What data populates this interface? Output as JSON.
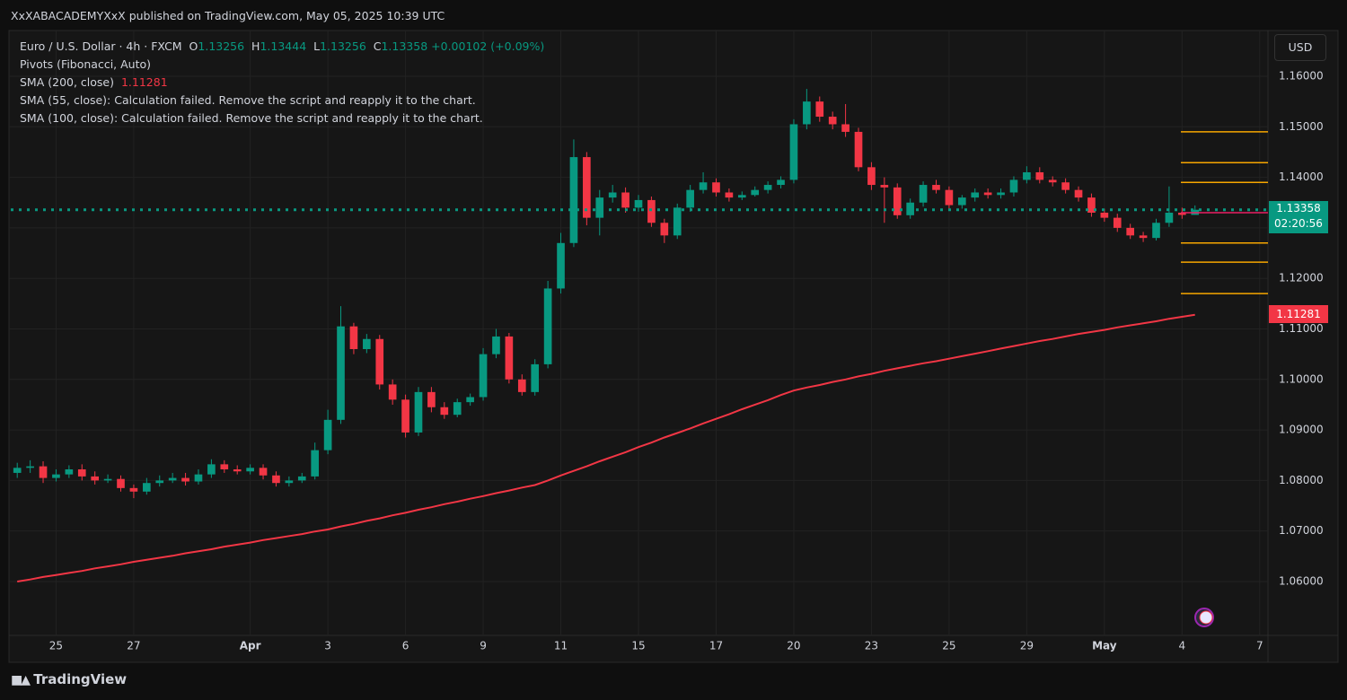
{
  "header": {
    "publisher": "XxXABACADEMYXxX published on TradingView.com, May 05, 2025 10:39 UTC"
  },
  "footer": {
    "brand": "TradingView"
  },
  "chart_data": {
    "type": "candlestick",
    "symbol": "Euro / U.S. Dollar · 4h · FXCM",
    "ohlc_labels": [
      "O",
      "H",
      "L",
      "C"
    ],
    "change": "+0.00102 (+0.09%)",
    "indicators": [
      "Pivots (Fibonacci, Auto)",
      "SMA (200, close)",
      "SMA (55, close): Calculation failed. Remove the script and reapply it to the chart.",
      "SMA (100, close): Calculation failed. Remove the script and reapply it to the chart."
    ],
    "currency": "USD",
    "countdown": "02:20:56",
    "up_color": "#089981",
    "down_color": "#f23645",
    "sma_color": "#f23645",
    "categories": [
      null,
      null,
      null,
      "25",
      null,
      null,
      null,
      null,
      null,
      "27",
      null,
      null,
      null,
      null,
      null,
      null,
      null,
      null,
      "Apr",
      null,
      null,
      null,
      null,
      null,
      "3",
      null,
      null,
      null,
      null,
      null,
      "6",
      null,
      null,
      null,
      null,
      null,
      "9",
      null,
      null,
      null,
      null,
      null,
      "11",
      null,
      null,
      null,
      null,
      null,
      "15",
      null,
      null,
      null,
      null,
      null,
      "17",
      null,
      null,
      null,
      null,
      null,
      "20",
      null,
      null,
      null,
      null,
      null,
      "23",
      null,
      null,
      null,
      null,
      null,
      "25",
      null,
      null,
      null,
      null,
      null,
      "29",
      null,
      null,
      null,
      null,
      null,
      "May",
      null,
      null,
      null,
      null,
      null,
      "4",
      null,
      null,
      null,
      null,
      null,
      "7"
    ],
    "open": [
      1.0815,
      1.0825,
      1.0828,
      1.0805,
      1.0812,
      1.0822,
      1.0808,
      1.08,
      1.0803,
      1.0785,
      1.0778,
      1.0795,
      1.08,
      1.0805,
      1.0798,
      1.0812,
      1.0832,
      1.0822,
      1.0818,
      1.0825,
      1.081,
      1.0795,
      1.08,
      1.0808,
      1.086,
      1.092,
      1.1105,
      1.106,
      1.108,
      1.099,
      1.096,
      1.0895,
      1.0975,
      1.0945,
      1.093,
      1.0955,
      1.0965,
      1.105,
      1.1085,
      1.1,
      1.0975,
      1.103,
      1.118,
      1.127,
      1.144,
      1.132,
      1.136,
      1.137,
      1.134,
      1.1355,
      1.131,
      1.1285,
      1.134,
      1.1375,
      1.139,
      1.137,
      1.136,
      1.1365,
      1.1375,
      1.1385,
      1.1395,
      1.1505,
      1.155,
      1.152,
      1.1505,
      1.149,
      1.142,
      1.1385,
      1.138,
      1.1325,
      1.135,
      1.1385,
      1.1375,
      1.1345,
      1.136,
      1.137,
      1.1365,
      1.137,
      1.1395,
      1.141,
      1.1395,
      1.139,
      1.1375,
      1.136,
      1.133,
      1.132,
      1.13,
      1.1285,
      1.128,
      1.131,
      1.133,
      1.13256,
      null,
      null,
      null,
      null,
      null
    ],
    "high": [
      1.0835,
      1.084,
      1.0838,
      1.0822,
      1.083,
      1.0832,
      1.0818,
      1.0812,
      1.081,
      1.0792,
      1.0805,
      1.081,
      1.0815,
      1.0815,
      1.0822,
      1.0842,
      1.084,
      1.083,
      1.0832,
      1.0832,
      1.0818,
      1.0808,
      1.0815,
      1.0875,
      1.094,
      1.1145,
      1.1112,
      1.109,
      1.1088,
      1.1,
      1.097,
      1.0985,
      1.0985,
      1.0955,
      1.0962,
      1.0972,
      1.1062,
      1.11,
      1.1092,
      1.101,
      1.104,
      1.1195,
      1.129,
      1.1475,
      1.145,
      1.1375,
      1.1385,
      1.138,
      1.1365,
      1.1362,
      1.1318,
      1.1348,
      1.1385,
      1.141,
      1.1398,
      1.1378,
      1.1372,
      1.1382,
      1.1392,
      1.1402,
      1.1515,
      1.1575,
      1.156,
      1.153,
      1.1545,
      1.1498,
      1.143,
      1.14,
      1.1388,
      1.1358,
      1.1392,
      1.1395,
      1.1382,
      1.1365,
      1.1378,
      1.1378,
      1.1378,
      1.1402,
      1.1422,
      1.142,
      1.1402,
      1.1398,
      1.1382,
      1.1368,
      1.1338,
      1.1328,
      1.1308,
      1.1292,
      1.1318,
      1.1382,
      1.134,
      1.13444,
      null,
      null,
      null,
      null,
      null
    ],
    "low": [
      1.0805,
      1.0815,
      1.0795,
      1.0798,
      1.0805,
      1.08,
      1.0792,
      1.0795,
      1.0778,
      1.0765,
      1.0772,
      1.0788,
      1.0795,
      1.079,
      1.0792,
      1.0805,
      1.0815,
      1.0812,
      1.0812,
      1.0802,
      1.0788,
      1.0788,
      1.0795,
      1.0802,
      1.0852,
      1.0912,
      1.105,
      1.1052,
      1.098,
      1.095,
      1.0885,
      1.0888,
      1.0935,
      1.0922,
      1.0925,
      1.0948,
      1.0958,
      1.1042,
      1.0992,
      1.0968,
      1.0968,
      1.1022,
      1.117,
      1.1262,
      1.1305,
      1.1285,
      1.135,
      1.133,
      1.1332,
      1.1302,
      1.127,
      1.1278,
      1.1332,
      1.1368,
      1.1362,
      1.1352,
      1.1355,
      1.1362,
      1.1368,
      1.1378,
      1.1388,
      1.1495,
      1.151,
      1.1495,
      1.148,
      1.1412,
      1.1375,
      1.131,
      1.1318,
      1.1318,
      1.1342,
      1.1368,
      1.1335,
      1.1338,
      1.1352,
      1.1358,
      1.1358,
      1.1362,
      1.1388,
      1.1388,
      1.1382,
      1.1368,
      1.1352,
      1.1322,
      1.1312,
      1.1292,
      1.1278,
      1.1272,
      1.1275,
      1.1302,
      1.1318,
      1.13256,
      null,
      null,
      null,
      null,
      null
    ],
    "close": [
      1.0825,
      1.0828,
      1.0805,
      1.0812,
      1.0822,
      1.0808,
      1.08,
      1.0803,
      1.0785,
      1.0778,
      1.0795,
      1.08,
      1.0805,
      1.0798,
      1.0812,
      1.0832,
      1.0822,
      1.0818,
      1.0825,
      1.081,
      1.0795,
      1.08,
      1.0808,
      1.086,
      1.092,
      1.1105,
      1.106,
      1.108,
      1.099,
      1.096,
      1.0895,
      1.0975,
      1.0945,
      1.093,
      1.0955,
      1.0965,
      1.105,
      1.1085,
      1.1,
      1.0975,
      1.103,
      1.118,
      1.127,
      1.144,
      1.132,
      1.136,
      1.137,
      1.134,
      1.1355,
      1.131,
      1.1285,
      1.134,
      1.1375,
      1.139,
      1.137,
      1.136,
      1.1365,
      1.1375,
      1.1385,
      1.1395,
      1.1505,
      1.155,
      1.152,
      1.1505,
      1.149,
      1.142,
      1.1385,
      1.138,
      1.1325,
      1.135,
      1.1385,
      1.1375,
      1.1345,
      1.136,
      1.137,
      1.1365,
      1.137,
      1.1395,
      1.141,
      1.1395,
      1.139,
      1.1375,
      1.136,
      1.133,
      1.132,
      1.13,
      1.1285,
      1.128,
      1.131,
      1.133,
      1.13256,
      1.13358,
      null,
      null,
      null,
      null,
      null
    ],
    "sma": [
      1.06,
      1.0604,
      1.0609,
      1.0613,
      1.0617,
      1.0621,
      1.0626,
      1.063,
      1.0634,
      1.0639,
      1.0643,
      1.0647,
      1.0651,
      1.0656,
      1.066,
      1.0664,
      1.0669,
      1.0673,
      1.0677,
      1.0682,
      1.0686,
      1.069,
      1.0694,
      1.0699,
      1.0703,
      1.0709,
      1.0714,
      1.072,
      1.0725,
      1.0731,
      1.0736,
      1.0742,
      1.0747,
      1.0753,
      1.0758,
      1.0764,
      1.0769,
      1.0775,
      1.078,
      1.0786,
      1.0791,
      1.08,
      1.081,
      1.0819,
      1.0828,
      1.0838,
      1.0847,
      1.0856,
      1.0866,
      1.0875,
      1.0885,
      1.0894,
      1.0903,
      1.0913,
      1.0922,
      1.0931,
      1.0941,
      1.095,
      1.0959,
      1.0969,
      1.0978,
      1.0984,
      1.0989,
      1.0995,
      1.1,
      1.1006,
      1.1011,
      1.1017,
      1.1022,
      1.1027,
      1.1032,
      1.1036,
      1.1041,
      1.1046,
      1.1051,
      1.1056,
      1.1061,
      1.1066,
      1.1071,
      1.1076,
      1.108,
      1.1085,
      1.109,
      1.1094,
      1.1098,
      1.1103,
      1.1107,
      1.1111,
      1.1115,
      1.112,
      1.1124,
      1.11281,
      null,
      null,
      null,
      null,
      null
    ],
    "pivots": [
      1.149,
      1.1429,
      1.139,
      1.133,
      1.127,
      1.1232,
      1.117
    ],
    "pivot_colors": [
      "#f7a600",
      "#f7a600",
      "#f7a600",
      "#e91e63",
      "#f7a600",
      "#f7a600",
      "#f7a600"
    ],
    "ylim": [
      1.04934,
      1.16888
    ],
    "yticks": [
      {
        "value": 1.06,
        "label": "1.06000"
      },
      {
        "value": 1.07,
        "label": "1.07000"
      },
      {
        "value": 1.08,
        "label": "1.08000"
      },
      {
        "value": 1.09,
        "label": "1.09000"
      },
      {
        "value": 1.1,
        "label": "1.10000"
      },
      {
        "value": 1.11,
        "label": "1.11000"
      },
      {
        "value": 1.12,
        "label": "1.12000"
      },
      {
        "value": 1.13,
        "label": "1.13000"
      },
      {
        "value": 1.14,
        "label": "1.14000"
      },
      {
        "value": 1.15,
        "label": "1.15000"
      },
      {
        "value": 1.16,
        "label": "1.16000"
      }
    ],
    "grid": true
  }
}
